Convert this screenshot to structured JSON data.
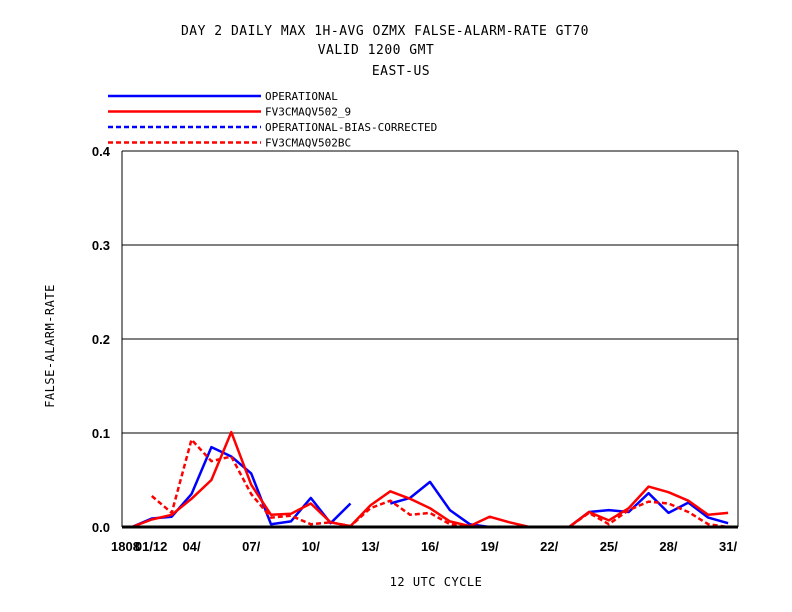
{
  "chart_data": {
    "type": "line",
    "title": "DAY 2 DAILY MAX   1H-AVG OZMX FALSE-ALARM-RATE GT70",
    "subtitle": "VALID 1200 GMT",
    "region": "EAST-US",
    "xlabel": "12 UTC CYCLE",
    "ylabel": "FALSE-ALARM-RATE",
    "ylim": [
      0,
      0.4
    ],
    "yticks": [
      "0.0",
      "0.1",
      "0.2",
      "0.3",
      "0.4"
    ],
    "x": [
      1,
      2,
      3,
      4,
      5,
      6,
      7,
      8,
      9,
      10,
      11,
      12,
      13,
      14,
      15,
      16,
      17,
      18,
      19,
      20,
      21,
      22,
      23,
      24,
      25,
      26,
      27,
      28,
      29,
      30,
      31
    ],
    "xlim": [
      0.5,
      31.5
    ],
    "xticks": [
      {
        "x": 1,
        "label": "1808"
      },
      {
        "x": 1.55,
        "label": "01/12"
      },
      {
        "x": 4,
        "label": "04/"
      },
      {
        "x": 7,
        "label": "07/"
      },
      {
        "x": 10,
        "label": "10/"
      },
      {
        "x": 13,
        "label": "13/"
      },
      {
        "x": 16,
        "label": "16/"
      },
      {
        "x": 19,
        "label": "19/"
      },
      {
        "x": 22,
        "label": "22/"
      },
      {
        "x": 25,
        "label": "25/"
      },
      {
        "x": 28,
        "label": "28/"
      },
      {
        "x": 31,
        "label": "31/"
      }
    ],
    "legend_placement": "top-left above plot",
    "grid": "horizontal",
    "series": [
      {
        "name": "OPERATIONAL",
        "color": "#0000ff",
        "dash": "solid",
        "values": [
          0.0,
          0.009,
          0.011,
          0.035,
          0.085,
          0.075,
          0.057,
          0.003,
          0.006,
          0.031,
          0.004,
          0.025,
          null,
          0.025,
          0.031,
          0.048,
          0.018,
          0.003,
          0.0,
          0.0,
          0.0,
          0.0,
          0.0,
          0.016,
          0.018,
          0.016,
          0.036,
          0.015,
          0.026,
          0.01,
          0.004
        ]
      },
      {
        "name": "FV3CMAQV502_9",
        "color": "#ff0000",
        "dash": "solid",
        "values": [
          0.0,
          0.008,
          0.013,
          0.03,
          0.05,
          0.101,
          0.045,
          0.013,
          0.014,
          0.025,
          0.005,
          0.001,
          0.023,
          0.038,
          0.03,
          0.02,
          0.006,
          0.001,
          0.011,
          0.005,
          0.0,
          0.0,
          0.0,
          0.016,
          0.007,
          0.02,
          0.043,
          0.037,
          0.028,
          0.013,
          0.015
        ]
      },
      {
        "name": "OPERATIONAL-BIAS-CORRECTED",
        "color": "#0000ff",
        "dash": "dashed",
        "values": [
          null,
          null,
          null,
          null,
          null,
          null,
          null,
          null,
          null,
          null,
          null,
          null,
          null,
          null,
          null,
          null,
          null,
          null,
          null,
          null,
          null,
          null,
          null,
          null,
          null,
          null,
          null,
          null,
          null,
          null,
          null
        ]
      },
      {
        "name": "FV3CMAQV502BC",
        "color": "#ff0000",
        "dash": "dashed",
        "values": [
          null,
          0.033,
          0.015,
          0.093,
          0.07,
          0.075,
          0.035,
          0.01,
          0.012,
          0.003,
          0.005,
          0.001,
          0.02,
          0.028,
          0.013,
          0.015,
          0.003,
          0.001,
          0.0,
          0.0,
          0.0,
          0.0,
          0.0,
          0.015,
          0.003,
          0.018,
          0.027,
          0.025,
          0.016,
          0.003,
          0.0
        ]
      }
    ]
  }
}
